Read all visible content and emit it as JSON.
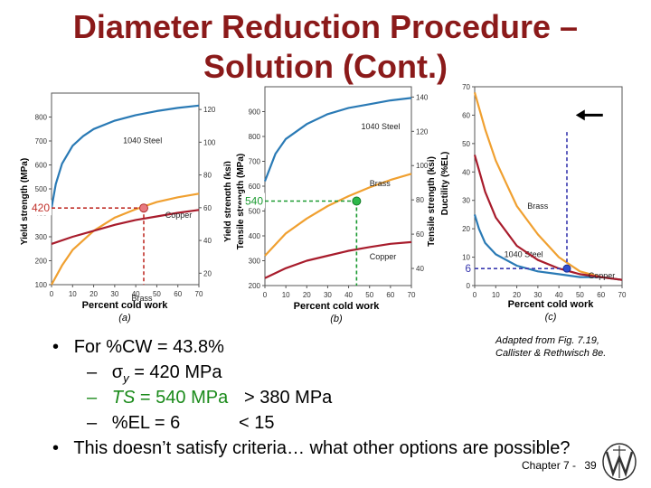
{
  "slide": {
    "title_line1": "Diameter Reduction Procedure –",
    "title_line2": "Solution (Cont.)",
    "credit_line1": "Adapted from Fig. 7.19,",
    "credit_line2": "Callister & Rethwisch 8e.",
    "chapter": "Chapter 7 -",
    "page": "39"
  },
  "bullets": {
    "b1": "For %CW = 43.8%",
    "s1_sym": "σ",
    "s1_sub": "y",
    "s1_rest": " = 420 MPa",
    "s2_ts": "TS",
    "s2_rest": " = 540 MPa",
    "s2_cmp": "> 380 MPa",
    "s3": "%EL = 6",
    "s3_cmp": "<  15",
    "b2": "This doesn’t satisfy criteria… what other options are possible?",
    "dash": "–",
    "dot": "•"
  },
  "annotations": {
    "yield_value": "420",
    "ts_value": "540",
    "el_value": "6"
  },
  "colors": {
    "steel": "#2a7ab5",
    "brass": "#f0a030",
    "copper": "#a81c2c",
    "title": "#8b1a1a",
    "green": "#1a9a30",
    "marker": "#e87a80",
    "blue_marker": "#3050d0"
  },
  "chart_data": [
    {
      "type": "line",
      "panel": "(a)",
      "xlabel": "Percent cold work",
      "ylabel": "Yield strength (MPa)",
      "ylabel_right": "Yield strength (ksi)",
      "xlim": [
        0,
        70
      ],
      "ylim": [
        100,
        900
      ],
      "x_ticks": [
        0,
        10,
        20,
        30,
        40,
        50,
        60,
        70
      ],
      "y_ticks": [
        100,
        200,
        300,
        400,
        500,
        600,
        700,
        800
      ],
      "y2_ticks": [
        20,
        40,
        60,
        80,
        100,
        120
      ],
      "series": [
        {
          "name": "1040 Steel",
          "x": [
            0,
            2,
            5,
            10,
            15,
            20,
            30,
            40,
            50,
            60,
            70
          ],
          "values": [
            420,
            520,
            605,
            680,
            720,
            750,
            785,
            808,
            825,
            838,
            848
          ]
        },
        {
          "name": "Brass",
          "x": [
            0,
            5,
            10,
            20,
            30,
            40,
            50,
            60,
            70
          ],
          "values": [
            100,
            180,
            245,
            325,
            380,
            415,
            445,
            465,
            480
          ]
        },
        {
          "name": "Copper",
          "x": [
            0,
            10,
            20,
            30,
            40,
            50,
            60,
            70
          ],
          "values": [
            270,
            300,
            325,
            350,
            370,
            385,
            400,
            412
          ]
        }
      ],
      "annotation": {
        "x": 43.8,
        "y": 420,
        "label": "420"
      }
    },
    {
      "type": "line",
      "panel": "(b)",
      "xlabel": "Percent cold work",
      "ylabel": "Tensile strength (MPa)",
      "ylabel_right": "Tensile strength (ksi)",
      "xlim": [
        0,
        70
      ],
      "ylim": [
        200,
        1000
      ],
      "x_ticks": [
        0,
        10,
        20,
        30,
        40,
        50,
        60,
        70
      ],
      "y_ticks": [
        200,
        300,
        400,
        500,
        600,
        700,
        800,
        900
      ],
      "y2_ticks": [
        40,
        60,
        80,
        100,
        120,
        140
      ],
      "series": [
        {
          "name": "1040 Steel",
          "x": [
            0,
            5,
            10,
            20,
            30,
            40,
            50,
            60,
            70
          ],
          "values": [
            620,
            730,
            790,
            850,
            890,
            915,
            930,
            945,
            955
          ]
        },
        {
          "name": "Brass",
          "x": [
            0,
            10,
            20,
            30,
            40,
            50,
            60,
            70
          ],
          "values": [
            320,
            410,
            470,
            520,
            560,
            595,
            625,
            650
          ]
        },
        {
          "name": "Copper",
          "x": [
            0,
            10,
            20,
            30,
            40,
            50,
            60,
            70
          ],
          "values": [
            230,
            270,
            300,
            320,
            340,
            355,
            368,
            375
          ]
        }
      ],
      "annotation": {
        "x": 43.8,
        "y": 540,
        "label": "540"
      }
    },
    {
      "type": "line",
      "panel": "(c)",
      "xlabel": "Percent cold work",
      "ylabel": "Ductility (%EL)",
      "xlim": [
        0,
        70
      ],
      "ylim": [
        0,
        70
      ],
      "x_ticks": [
        0,
        10,
        20,
        30,
        40,
        50,
        60,
        70
      ],
      "y_ticks": [
        0,
        10,
        20,
        30,
        40,
        50,
        60,
        70
      ],
      "series": [
        {
          "name": "Brass",
          "x": [
            0,
            5,
            10,
            15,
            20,
            30,
            40,
            50,
            60,
            70
          ],
          "values": [
            68,
            55,
            44,
            36,
            28,
            18,
            10,
            5,
            3,
            2
          ]
        },
        {
          "name": "1040 Steel",
          "x": [
            0,
            2,
            5,
            10,
            15,
            20,
            30,
            40,
            50,
            60,
            70
          ],
          "values": [
            25,
            20,
            15,
            11,
            9,
            7,
            5,
            4,
            3,
            3,
            2
          ]
        },
        {
          "name": "Copper",
          "x": [
            0,
            5,
            10,
            20,
            30,
            40,
            50,
            60,
            70
          ],
          "values": [
            46,
            33,
            24,
            14,
            9,
            6,
            4,
            3,
            2
          ]
        }
      ],
      "annotation": {
        "x": 43.8,
        "y": 6,
        "label": "6"
      }
    }
  ]
}
